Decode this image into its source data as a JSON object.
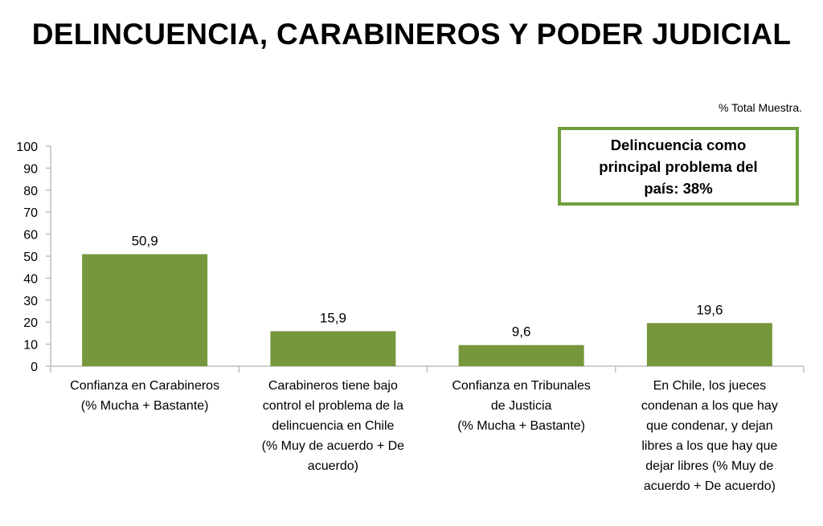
{
  "title": "DELINCUENCIA, CARABINEROS Y PODER JUDICIAL",
  "sample_note": "% Total Muestra.",
  "callout": {
    "text": "Delincuencia como principal problema del país: 38%"
  },
  "colors": {
    "bar": "#77973d",
    "callout_border": "#6f9f3d",
    "axis": "#bfbfbf"
  },
  "chart_data": {
    "type": "bar",
    "title": "",
    "xlabel": "",
    "ylabel": "",
    "ylim": [
      0,
      100
    ],
    "yticks": [
      0,
      10,
      20,
      30,
      40,
      50,
      60,
      70,
      80,
      90,
      100
    ],
    "categories": [
      "Confianza en Carabineros\n(% Mucha + Bastante)",
      "Carabineros tiene bajo\ncontrol el problema de la\ndelincuencia en Chile\n(% Muy de acuerdo + De\nacuerdo)",
      "Confianza en Tribunales\nde Justicia\n(% Mucha + Bastante)",
      "En Chile, los jueces\ncondenan a los que hay\nque condenar, y dejan\nlibres a los que hay que\ndejar libres (% Muy de\nacuerdo + De acuerdo)"
    ],
    "values": [
      50.9,
      15.9,
      9.6,
      19.6
    ],
    "value_labels": [
      "50,9",
      "15,9",
      "9,6",
      "19,6"
    ],
    "grid": false,
    "legend": "none"
  }
}
